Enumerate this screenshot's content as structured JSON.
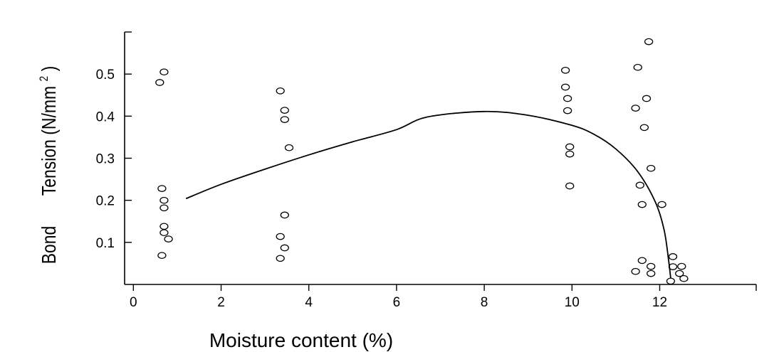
{
  "chart_data": {
    "type": "scatter",
    "xlabel": "Moisture content (%)",
    "ylabel_parts": [
      "Bond",
      "Tension (N/mm",
      "2",
      ")"
    ],
    "x_ticks": [
      0,
      2,
      4,
      6,
      8,
      10,
      12
    ],
    "x_tick_labels": [
      "0",
      "2",
      "4",
      "6",
      "8",
      "10",
      "12"
    ],
    "y_ticks": [
      0.1,
      0.2,
      0.3,
      0.4,
      0.5
    ],
    "y_tick_labels": [
      "0.1",
      "0.2",
      "0.3",
      "0.4",
      "0.5"
    ],
    "xlim": [
      -0.2,
      14.2
    ],
    "ylim": [
      0,
      0.6
    ],
    "grid": false,
    "points": [
      {
        "x": 0.6,
        "y": 0.48
      },
      {
        "x": 0.7,
        "y": 0.505
      },
      {
        "x": 0.65,
        "y": 0.228
      },
      {
        "x": 0.7,
        "y": 0.2
      },
      {
        "x": 0.7,
        "y": 0.182
      },
      {
        "x": 0.7,
        "y": 0.138
      },
      {
        "x": 0.7,
        "y": 0.123
      },
      {
        "x": 0.8,
        "y": 0.108
      },
      {
        "x": 0.65,
        "y": 0.069
      },
      {
        "x": 3.35,
        "y": 0.46
      },
      {
        "x": 3.45,
        "y": 0.414
      },
      {
        "x": 3.45,
        "y": 0.392
      },
      {
        "x": 3.55,
        "y": 0.325
      },
      {
        "x": 3.45,
        "y": 0.165
      },
      {
        "x": 3.35,
        "y": 0.114
      },
      {
        "x": 3.45,
        "y": 0.087
      },
      {
        "x": 3.35,
        "y": 0.062
      },
      {
        "x": 9.85,
        "y": 0.509
      },
      {
        "x": 9.85,
        "y": 0.469
      },
      {
        "x": 9.9,
        "y": 0.442
      },
      {
        "x": 9.9,
        "y": 0.413
      },
      {
        "x": 9.95,
        "y": 0.327
      },
      {
        "x": 9.95,
        "y": 0.31
      },
      {
        "x": 9.95,
        "y": 0.234
      },
      {
        "x": 11.75,
        "y": 0.577
      },
      {
        "x": 11.5,
        "y": 0.516
      },
      {
        "x": 11.7,
        "y": 0.442
      },
      {
        "x": 11.45,
        "y": 0.419
      },
      {
        "x": 11.65,
        "y": 0.373
      },
      {
        "x": 11.8,
        "y": 0.276
      },
      {
        "x": 11.55,
        "y": 0.236
      },
      {
        "x": 11.6,
        "y": 0.19
      },
      {
        "x": 12.05,
        "y": 0.19
      },
      {
        "x": 11.6,
        "y": 0.057
      },
      {
        "x": 11.8,
        "y": 0.043
      },
      {
        "x": 11.8,
        "y": 0.026
      },
      {
        "x": 11.45,
        "y": 0.031
      },
      {
        "x": 12.3,
        "y": 0.066
      },
      {
        "x": 12.3,
        "y": 0.042
      },
      {
        "x": 12.5,
        "y": 0.043
      },
      {
        "x": 12.45,
        "y": 0.026
      },
      {
        "x": 12.55,
        "y": 0.014
      },
      {
        "x": 12.25,
        "y": 0.008
      }
    ],
    "fit_curve": [
      {
        "x": 1.2,
        "y": 0.204
      },
      {
        "x": 2.0,
        "y": 0.238
      },
      {
        "x": 3.0,
        "y": 0.274
      },
      {
        "x": 4.0,
        "y": 0.308
      },
      {
        "x": 5.0,
        "y": 0.339
      },
      {
        "x": 6.0,
        "y": 0.368
      },
      {
        "x": 6.7,
        "y": 0.398
      },
      {
        "x": 8.0,
        "y": 0.411
      },
      {
        "x": 9.0,
        "y": 0.402
      },
      {
        "x": 10.0,
        "y": 0.378
      },
      {
        "x": 10.5,
        "y": 0.357
      },
      {
        "x": 11.0,
        "y": 0.322
      },
      {
        "x": 11.5,
        "y": 0.268
      },
      {
        "x": 11.9,
        "y": 0.196
      },
      {
        "x": 12.1,
        "y": 0.13
      },
      {
        "x": 12.2,
        "y": 0.06
      },
      {
        "x": 12.25,
        "y": 0.015
      }
    ]
  }
}
